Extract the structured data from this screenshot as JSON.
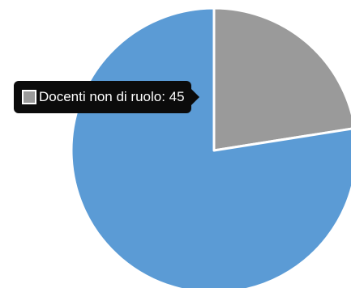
{
  "chart_data": {
    "type": "pie",
    "slices": [
      {
        "value": 45,
        "color": "#9a9a9a"
      },
      {
        "value": 155,
        "color": "#5b9bd5"
      }
    ],
    "tooltip": {
      "label": "Docenti non di ruolo: 45",
      "swatch_color": "#9a9a9a"
    }
  }
}
